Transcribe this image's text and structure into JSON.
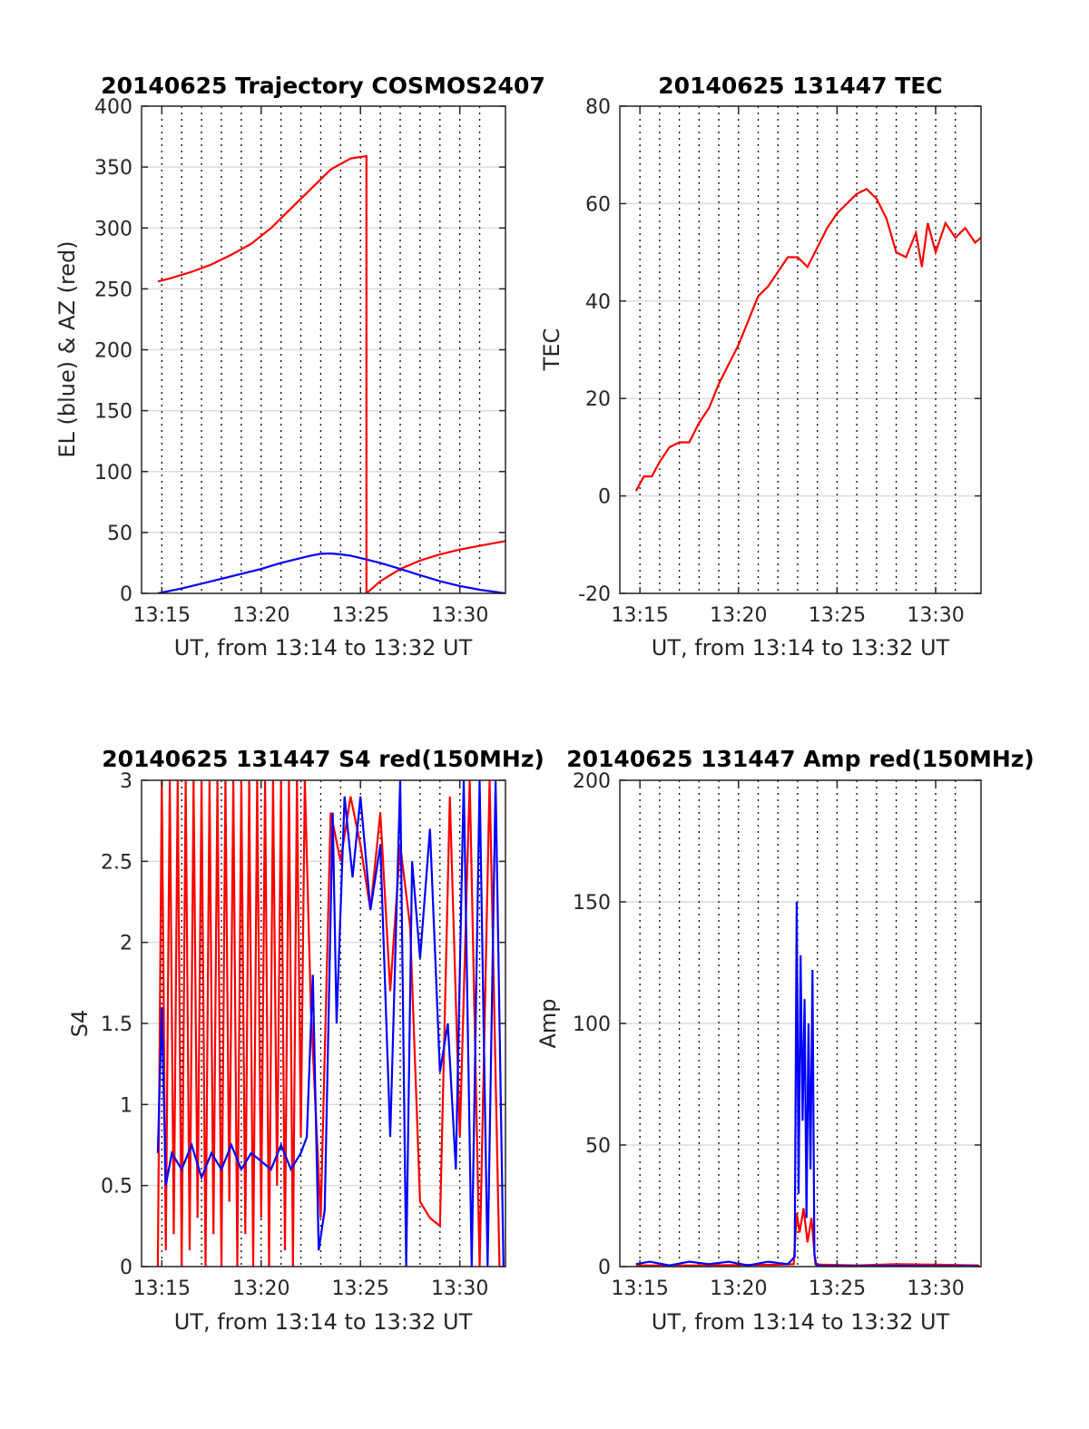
{
  "colors": {
    "red": "#ff0000",
    "blue": "#0000ff",
    "grid_h": "#dcdcdc",
    "grid_v": "#000000",
    "axes": "#262626"
  },
  "chart_data": [
    {
      "type": "line",
      "title": "20140625 Trajectory COSMOS2407",
      "xlabel": "UT, from 13:14 to 13:32 UT",
      "ylabel": "EL (blue) & AZ (red)",
      "xlim": [
        13.98,
        32.3
      ],
      "ylim": [
        0,
        400
      ],
      "xticks": [
        15,
        20,
        25,
        30
      ],
      "xtick_labels": [
        "13:15",
        "13:20",
        "13:25",
        "13:30"
      ],
      "yticks": [
        0,
        50,
        100,
        150,
        200,
        250,
        300,
        350,
        400
      ],
      "ytick_labels": [
        "0",
        "50",
        "100",
        "150",
        "200",
        "250",
        "300",
        "350",
        "400"
      ],
      "vgrid": [
        15,
        16,
        17,
        18,
        19,
        20,
        21,
        22,
        23,
        24,
        25,
        26,
        27,
        28,
        29,
        30,
        31
      ],
      "grid": true,
      "series": [
        {
          "name": "AZ (red)",
          "color": "red",
          "x": [
            14.8,
            15.5,
            16.5,
            17.5,
            18.5,
            19.5,
            20.5,
            21.5,
            22.5,
            23.5,
            24.5,
            25.3,
            25.3,
            26,
            27,
            28,
            29,
            30,
            31,
            32,
            32.3
          ],
          "y": [
            256,
            259,
            264,
            270,
            278,
            287,
            300,
            316,
            332,
            348,
            357,
            359,
            0,
            10,
            20,
            27,
            32,
            36,
            39,
            42,
            43
          ]
        },
        {
          "name": "EL (blue)",
          "color": "blue",
          "x": [
            14.8,
            16,
            17,
            18,
            19,
            20,
            21,
            22,
            22.5,
            23,
            23.5,
            24,
            24.5,
            25,
            26,
            27,
            28,
            29,
            30,
            31,
            32.3
          ],
          "y": [
            0,
            4,
            8,
            12,
            16,
            20,
            25,
            29,
            31,
            32.5,
            32.8,
            32,
            31,
            29,
            25,
            20,
            15,
            10,
            6,
            3,
            0
          ]
        }
      ]
    },
    {
      "type": "line",
      "title": "20140625 131447 TEC",
      "xlabel": "UT, from 13:14 to 13:32 UT",
      "ylabel": "TEC",
      "xlim": [
        13.98,
        32.3
      ],
      "ylim": [
        -20,
        80
      ],
      "xticks": [
        15,
        20,
        25,
        30
      ],
      "xtick_labels": [
        "13:15",
        "13:20",
        "13:25",
        "13:30"
      ],
      "yticks": [
        -20,
        0,
        20,
        40,
        60,
        80
      ],
      "ytick_labels": [
        "-20",
        "0",
        "20",
        "40",
        "60",
        "80"
      ],
      "vgrid": [
        15,
        16,
        17,
        18,
        19,
        20,
        21,
        22,
        23,
        24,
        25,
        26,
        27,
        28,
        29,
        30,
        31
      ],
      "grid": true,
      "series": [
        {
          "name": "TEC",
          "color": "red",
          "x": [
            14.8,
            15.2,
            15.6,
            16,
            16.5,
            17,
            17.5,
            18,
            18.5,
            19,
            19.5,
            20,
            20.5,
            21,
            21.5,
            22,
            22.5,
            23,
            23.5,
            24,
            24.5,
            25,
            25.5,
            26,
            26.5,
            27,
            27.5,
            28,
            28.5,
            29,
            29.3,
            29.6,
            30,
            30.5,
            31,
            31.5,
            32,
            32.3
          ],
          "y": [
            1,
            4,
            4,
            7,
            10,
            11,
            11,
            15,
            18,
            23,
            27,
            31,
            36,
            41,
            43,
            46,
            49,
            49,
            47,
            51,
            55,
            58,
            60,
            62,
            63,
            61,
            57,
            50,
            49,
            54,
            47,
            56,
            50,
            56,
            53,
            55,
            52,
            53
          ]
        }
      ]
    },
    {
      "type": "line",
      "title": "20140625 131447 S4 red(150MHz)",
      "xlabel": "UT, from 13:14 to 13:32 UT",
      "ylabel": "S4",
      "xlim": [
        13.98,
        32.3
      ],
      "ylim": [
        0,
        3
      ],
      "xticks": [
        15,
        20,
        25,
        30
      ],
      "xtick_labels": [
        "13:15",
        "13:20",
        "13:25",
        "13:30"
      ],
      "yticks": [
        0,
        0.5,
        1,
        1.5,
        2,
        2.5,
        3
      ],
      "ytick_labels": [
        "0",
        "0.5",
        "1",
        "1.5",
        "2",
        "2.5",
        "3"
      ],
      "vgrid": [
        15,
        16,
        17,
        18,
        19,
        20,
        21,
        22,
        23,
        24,
        25,
        26,
        27,
        28,
        29,
        30,
        31
      ],
      "grid": true,
      "series": [
        {
          "name": "S4 red",
          "color": "red",
          "x": [
            14.8,
            15,
            15.2,
            15.4,
            15.6,
            15.8,
            16,
            16.2,
            16.4,
            16.6,
            16.8,
            17,
            17.2,
            17.4,
            17.6,
            17.8,
            18,
            18.2,
            18.4,
            18.6,
            18.8,
            19,
            19.2,
            19.4,
            19.6,
            19.8,
            20,
            20.2,
            20.4,
            20.6,
            20.8,
            21,
            21.2,
            21.4,
            21.6,
            21.8,
            22,
            22.2,
            22.5,
            23,
            23.5,
            24,
            24.5,
            25,
            25.5,
            26,
            26.5,
            27,
            27.5,
            28,
            28.5,
            29,
            29.5,
            30,
            30.5,
            31,
            31.5,
            32
          ],
          "y": [
            0,
            3,
            0.1,
            3,
            0.2,
            3,
            0,
            3,
            0.1,
            3,
            0.3,
            3,
            0,
            3,
            0.2,
            3,
            0,
            3,
            0.4,
            3,
            0,
            3,
            0.2,
            3,
            0,
            3,
            0.3,
            3,
            0,
            3,
            0.5,
            3,
            0.1,
            3,
            0,
            3,
            0.8,
            3,
            1.6,
            0.3,
            2.8,
            2.5,
            2.9,
            2.6,
            2.2,
            2.8,
            1.7,
            2.6,
            2.1,
            0.4,
            0.3,
            0.25,
            2.9,
            0.8,
            3,
            0,
            3,
            0
          ]
        },
        {
          "name": "S4 blue",
          "color": "blue",
          "x": [
            14.8,
            15,
            15.2,
            15.5,
            16,
            16.5,
            17,
            17.5,
            18,
            18.5,
            19,
            19.5,
            20,
            20.5,
            21,
            21.5,
            22,
            22.3,
            22.6,
            22.9,
            23.2,
            23.6,
            23.8,
            24.2,
            24.6,
            25,
            25.5,
            26,
            26.5,
            27,
            27.3,
            27.6,
            28,
            28.5,
            29,
            29.4,
            29.8,
            30.2,
            30.6,
            31,
            31.4,
            31.8,
            32.2
          ],
          "y": [
            0.7,
            1.6,
            0.5,
            0.7,
            0.6,
            0.75,
            0.55,
            0.7,
            0.6,
            0.75,
            0.6,
            0.7,
            0.65,
            0.6,
            0.75,
            0.6,
            0.7,
            0.8,
            1.8,
            0.1,
            0.35,
            2.8,
            1.5,
            2.9,
            2.4,
            2.9,
            2.2,
            2.6,
            0.8,
            3,
            0,
            2.5,
            1.9,
            2.7,
            1.2,
            1.5,
            0.6,
            3,
            0,
            3,
            0,
            3,
            0
          ]
        }
      ]
    },
    {
      "type": "line",
      "title": "20140625 131447 Amp red(150MHz)",
      "xlabel": "UT, from 13:14 to 13:32 UT",
      "ylabel": "Amp",
      "xlim": [
        13.98,
        32.3
      ],
      "ylim": [
        0,
        200
      ],
      "xticks": [
        15,
        20,
        25,
        30
      ],
      "xtick_labels": [
        "13:15",
        "13:20",
        "13:25",
        "13:30"
      ],
      "yticks": [
        0,
        50,
        100,
        150,
        200
      ],
      "ytick_labels": [
        "0",
        "50",
        "100",
        "150",
        "200"
      ],
      "vgrid": [
        15,
        16,
        17,
        18,
        19,
        20,
        21,
        22,
        23,
        24,
        25,
        26,
        27,
        28,
        29,
        30,
        31
      ],
      "grid": true,
      "series": [
        {
          "name": "Amp red",
          "color": "red",
          "x": [
            14.8,
            18,
            22,
            22.8,
            22.95,
            23.1,
            23.3,
            23.5,
            23.7,
            23.9,
            24.2,
            26,
            28,
            30,
            32.2
          ],
          "y": [
            0.5,
            0.5,
            0.8,
            1,
            22,
            14,
            24,
            10,
            20,
            1,
            0.8,
            0.5,
            1,
            0.8,
            0.5
          ]
        },
        {
          "name": "Amp blue",
          "color": "blue",
          "x": [
            14.8,
            15.5,
            16.5,
            17.5,
            18.5,
            19.5,
            20.5,
            21.5,
            22.5,
            22.85,
            22.95,
            23.05,
            23.15,
            23.25,
            23.35,
            23.45,
            23.55,
            23.65,
            23.75,
            23.85,
            23.95,
            24.2,
            26,
            28,
            30,
            32.2
          ],
          "y": [
            1,
            2,
            0.5,
            2,
            1,
            2,
            0.5,
            2,
            1,
            4,
            150,
            30,
            128,
            60,
            110,
            20,
            100,
            40,
            122,
            5,
            0.5,
            0.3,
            0.2,
            0.3,
            0.2,
            0.2
          ]
        }
      ]
    }
  ]
}
